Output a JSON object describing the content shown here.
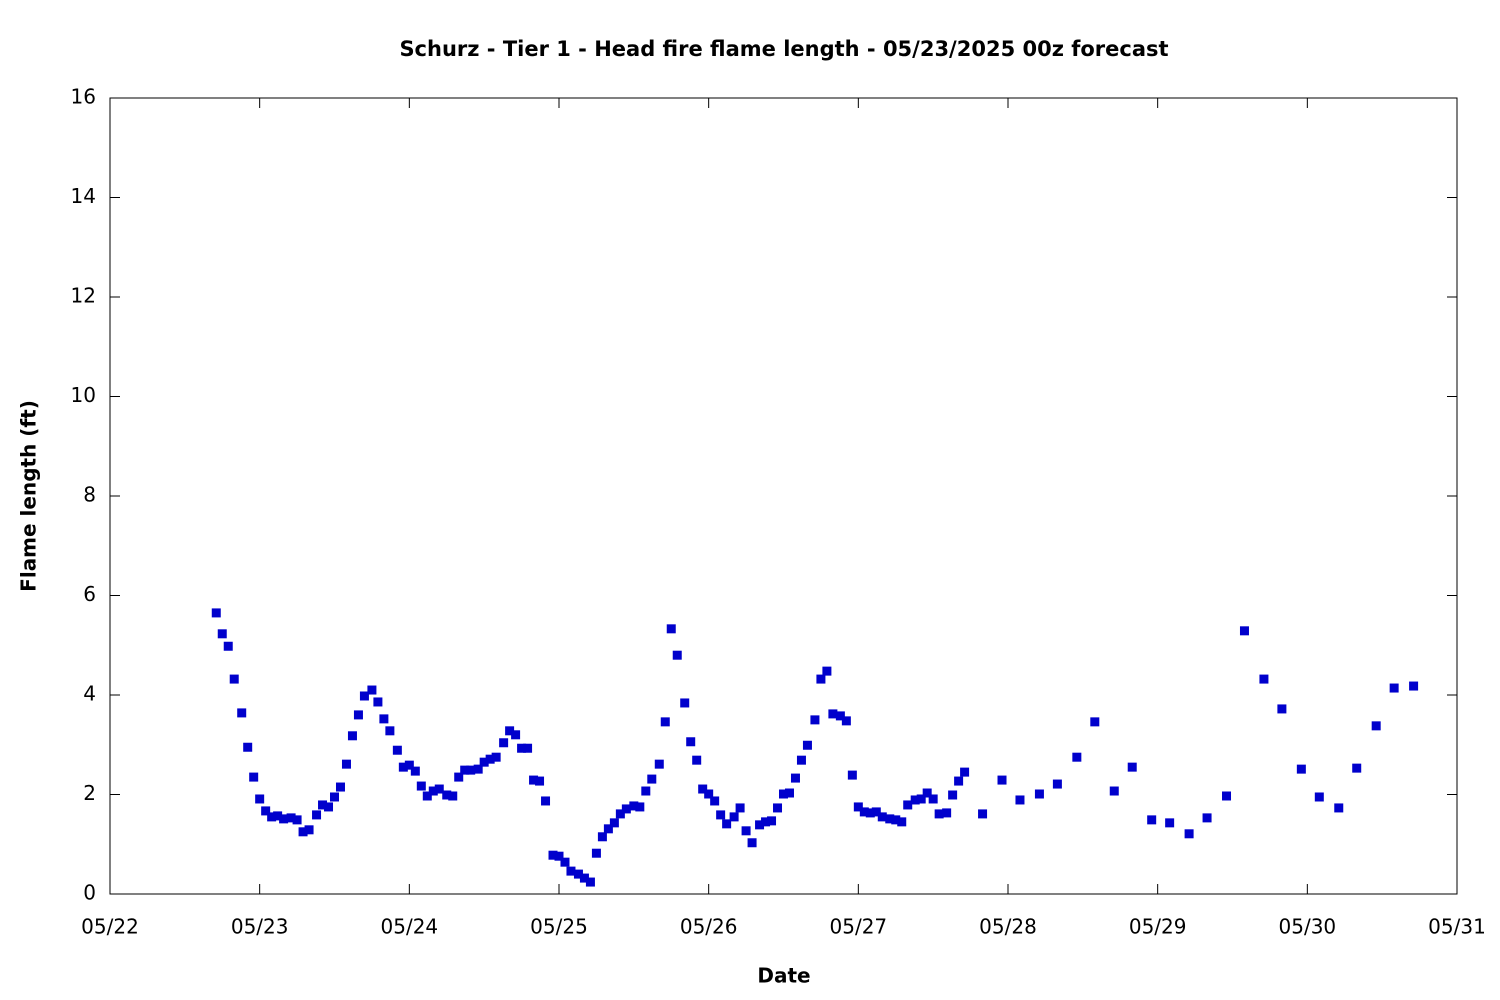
{
  "chart_data": {
    "type": "scatter",
    "title": "Schurz - Tier 1 - Head fire flame length - 05/23/2025 00z forecast",
    "xlabel": "Date",
    "ylabel": "Flame length (ft)",
    "color": "#0000cc",
    "xlim": [
      22,
      31
    ],
    "xticks": [
      {
        "value": 22,
        "label": "05/22"
      },
      {
        "value": 23,
        "label": "05/23"
      },
      {
        "value": 24,
        "label": "05/24"
      },
      {
        "value": 25,
        "label": "05/25"
      },
      {
        "value": 26,
        "label": "05/26"
      },
      {
        "value": 27,
        "label": "05/27"
      },
      {
        "value": 28,
        "label": "05/28"
      },
      {
        "value": 29,
        "label": "05/29"
      },
      {
        "value": 30,
        "label": "05/30"
      },
      {
        "value": 31,
        "label": "05/31"
      }
    ],
    "ylim": [
      0,
      16
    ],
    "yticks": [
      0,
      2,
      4,
      6,
      8,
      10,
      12,
      14,
      16
    ],
    "x": [
      22.71,
      22.75,
      22.79,
      22.83,
      22.88,
      22.92,
      22.96,
      23.0,
      23.04,
      23.08,
      23.12,
      23.16,
      23.21,
      23.25,
      23.29,
      23.33,
      23.38,
      23.42,
      23.46,
      23.5,
      23.54,
      23.58,
      23.62,
      23.66,
      23.7,
      23.75,
      23.79,
      23.83,
      23.87,
      23.92,
      23.96,
      24.0,
      24.04,
      24.08,
      24.12,
      24.16,
      24.2,
      24.25,
      24.29,
      24.33,
      24.37,
      24.41,
      24.46,
      24.5,
      24.54,
      24.58,
      24.63,
      24.67,
      24.71,
      24.75,
      24.79,
      24.83,
      24.87,
      24.91,
      24.96,
      25.0,
      25.04,
      25.08,
      25.13,
      25.17,
      25.21,
      25.25,
      25.29,
      25.33,
      25.37,
      25.41,
      25.45,
      25.5,
      25.54,
      25.58,
      25.62,
      25.67,
      25.71,
      25.75,
      25.79,
      25.84,
      25.88,
      25.92,
      25.96,
      26.0,
      26.04,
      26.08,
      26.12,
      26.17,
      26.21,
      26.25,
      26.29,
      26.34,
      26.38,
      26.42,
      26.46,
      26.5,
      26.54,
      26.58,
      26.62,
      26.66,
      26.71,
      26.75,
      26.79,
      26.83,
      26.88,
      26.92,
      26.96,
      27.0,
      27.04,
      27.08,
      27.12,
      27.16,
      27.21,
      27.25,
      27.29,
      27.33,
      27.38,
      27.42,
      27.46,
      27.5,
      27.54,
      27.59,
      27.63,
      27.67,
      27.71,
      27.83,
      27.96,
      28.08,
      28.21,
      28.33,
      28.46,
      28.58,
      28.71,
      28.83,
      28.96,
      29.08,
      29.21,
      29.33,
      29.46,
      29.58,
      29.71,
      29.83,
      29.96,
      30.08,
      30.21,
      30.33,
      30.46,
      30.58,
      30.71
    ],
    "values": [
      5.65,
      5.23,
      4.98,
      4.32,
      3.64,
      2.95,
      2.35,
      1.91,
      1.67,
      1.55,
      1.57,
      1.51,
      1.53,
      1.49,
      1.25,
      1.29,
      1.59,
      1.79,
      1.75,
      1.95,
      2.15,
      2.61,
      3.18,
      3.6,
      3.98,
      4.1,
      3.86,
      3.52,
      3.28,
      2.89,
      2.55,
      2.59,
      2.47,
      2.17,
      1.97,
      2.07,
      2.11,
      1.99,
      1.97,
      2.35,
      2.49,
      2.49,
      2.51,
      2.65,
      2.71,
      2.75,
      3.04,
      3.28,
      3.2,
      2.93,
      2.93,
      2.29,
      2.27,
      1.87,
      0.78,
      0.76,
      0.64,
      0.46,
      0.4,
      0.32,
      0.24,
      0.82,
      1.15,
      1.31,
      1.43,
      1.61,
      1.71,
      1.77,
      1.75,
      2.07,
      2.31,
      2.61,
      3.46,
      5.33,
      4.8,
      3.84,
      3.06,
      2.69,
      2.11,
      2.01,
      1.87,
      1.59,
      1.41,
      1.55,
      1.73,
      1.27,
      1.03,
      1.39,
      1.45,
      1.47,
      1.73,
      2.01,
      2.03,
      2.33,
      2.69,
      2.99,
      3.5,
      4.32,
      4.48,
      3.62,
      3.58,
      3.48,
      2.39,
      1.75,
      1.65,
      1.63,
      1.65,
      1.55,
      1.51,
      1.49,
      1.45,
      1.79,
      1.89,
      1.91,
      2.03,
      1.91,
      1.61,
      1.63,
      1.99,
      2.27,
      2.45,
      1.61,
      2.29,
      1.89,
      2.01,
      2.21,
      2.75,
      3.46,
      2.07,
      2.55,
      1.49,
      1.43,
      1.21,
      1.53,
      1.97,
      5.29,
      4.32,
      3.72,
      2.51,
      1.95,
      1.73,
      2.53,
      3.38,
      4.14,
      4.18
    ]
  }
}
